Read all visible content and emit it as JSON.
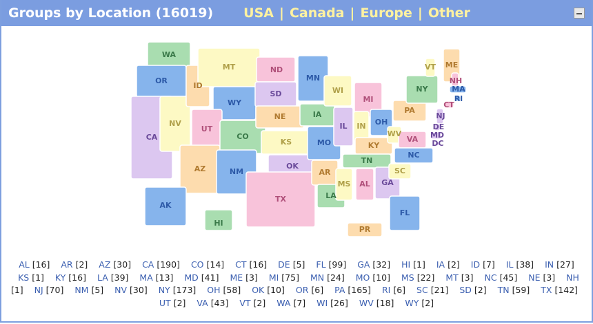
{
  "header": {
    "title": "Groups by Location (16019)",
    "nav": [
      "USA",
      "Canada",
      "Europe",
      "Other"
    ],
    "separator": "|"
  },
  "map": {
    "labels": [
      "WA",
      "OR",
      "CA",
      "NV",
      "ID",
      "MT",
      "WY",
      "UT",
      "AZ",
      "CO",
      "NM",
      "ND",
      "SD",
      "NE",
      "KS",
      "OK",
      "TX",
      "MN",
      "IA",
      "MO",
      "AR",
      "LA",
      "WI",
      "IL",
      "MS",
      "MI",
      "IN",
      "KY",
      "TN",
      "AL",
      "OH",
      "GA",
      "FL",
      "WV",
      "VA",
      "NC",
      "SC",
      "PA",
      "NY",
      "VT",
      "ME",
      "NH",
      "MA",
      "RI",
      "CT",
      "NJ",
      "DE",
      "MD",
      "DC",
      "AK",
      "HI",
      "PR"
    ]
  },
  "list": [
    {
      "state": "AL",
      "count": "[16]"
    },
    {
      "state": "AR",
      "count": "[2]"
    },
    {
      "state": "AZ",
      "count": "[30]"
    },
    {
      "state": "CA",
      "count": "[190]"
    },
    {
      "state": "CO",
      "count": "[14]"
    },
    {
      "state": "CT",
      "count": "[16]"
    },
    {
      "state": "DE",
      "count": "[5]"
    },
    {
      "state": "FL",
      "count": "[99]"
    },
    {
      "state": "GA",
      "count": "[32]"
    },
    {
      "state": "HI",
      "count": "[1]"
    },
    {
      "state": "IA",
      "count": "[2]"
    },
    {
      "state": "ID",
      "count": "[7]"
    },
    {
      "state": "IL",
      "count": "[38]"
    },
    {
      "state": "IN",
      "count": "[27]"
    },
    {
      "state": "KS",
      "count": "[1]"
    },
    {
      "state": "KY",
      "count": "[16]"
    },
    {
      "state": "LA",
      "count": "[39]"
    },
    {
      "state": "MA",
      "count": "[13]"
    },
    {
      "state": "MD",
      "count": "[41]"
    },
    {
      "state": "ME",
      "count": "[3]"
    },
    {
      "state": "MI",
      "count": "[75]"
    },
    {
      "state": "MN",
      "count": "[24]"
    },
    {
      "state": "MO",
      "count": "[10]"
    },
    {
      "state": "MS",
      "count": "[22]"
    },
    {
      "state": "MT",
      "count": "[3]"
    },
    {
      "state": "NC",
      "count": "[45]"
    },
    {
      "state": "NE",
      "count": "[3]"
    },
    {
      "state": "NH",
      "count": "[1]"
    },
    {
      "state": "NJ",
      "count": "[70]"
    },
    {
      "state": "NM",
      "count": "[5]"
    },
    {
      "state": "NV",
      "count": "[30]"
    },
    {
      "state": "NY",
      "count": "[173]"
    },
    {
      "state": "OH",
      "count": "[58]"
    },
    {
      "state": "OK",
      "count": "[10]"
    },
    {
      "state": "OR",
      "count": "[6]"
    },
    {
      "state": "PA",
      "count": "[165]"
    },
    {
      "state": "RI",
      "count": "[6]"
    },
    {
      "state": "SC",
      "count": "[21]"
    },
    {
      "state": "SD",
      "count": "[2]"
    },
    {
      "state": "TN",
      "count": "[59]"
    },
    {
      "state": "TX",
      "count": "[142]"
    },
    {
      "state": "UT",
      "count": "[2]"
    },
    {
      "state": "VA",
      "count": "[43]"
    },
    {
      "state": "VT",
      "count": "[2]"
    },
    {
      "state": "WA",
      "count": "[7]"
    },
    {
      "state": "WI",
      "count": "[26]"
    },
    {
      "state": "WV",
      "count": "[18]"
    },
    {
      "state": "WY",
      "count": "[2]"
    }
  ]
}
